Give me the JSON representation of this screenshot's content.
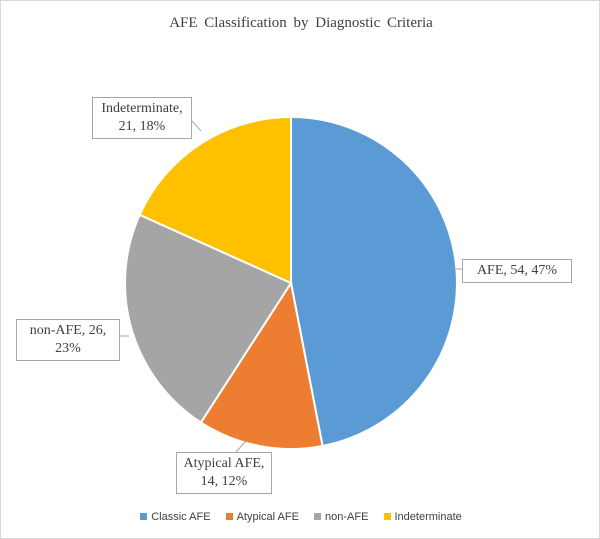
{
  "chart_data": {
    "type": "pie",
    "title": "AFE Classification  by Diagnostic  Criteria",
    "categories": [
      "Classic AFE",
      "Atypical AFE",
      "non-AFE",
      "Indeterminate"
    ],
    "values": [
      54,
      14,
      26,
      21
    ],
    "percents": [
      47,
      12,
      23,
      18
    ],
    "colors": [
      "#5B9BD5",
      "#ED7D31",
      "#A5A5A5",
      "#FFC000"
    ],
    "data_labels": [
      "AFE, 54, 47%",
      "Atypical  AFE, 14, 12%",
      "non-AFE, 26, 23%",
      "Indeterminate, 21, 18%"
    ],
    "legend_position": "bottom"
  }
}
